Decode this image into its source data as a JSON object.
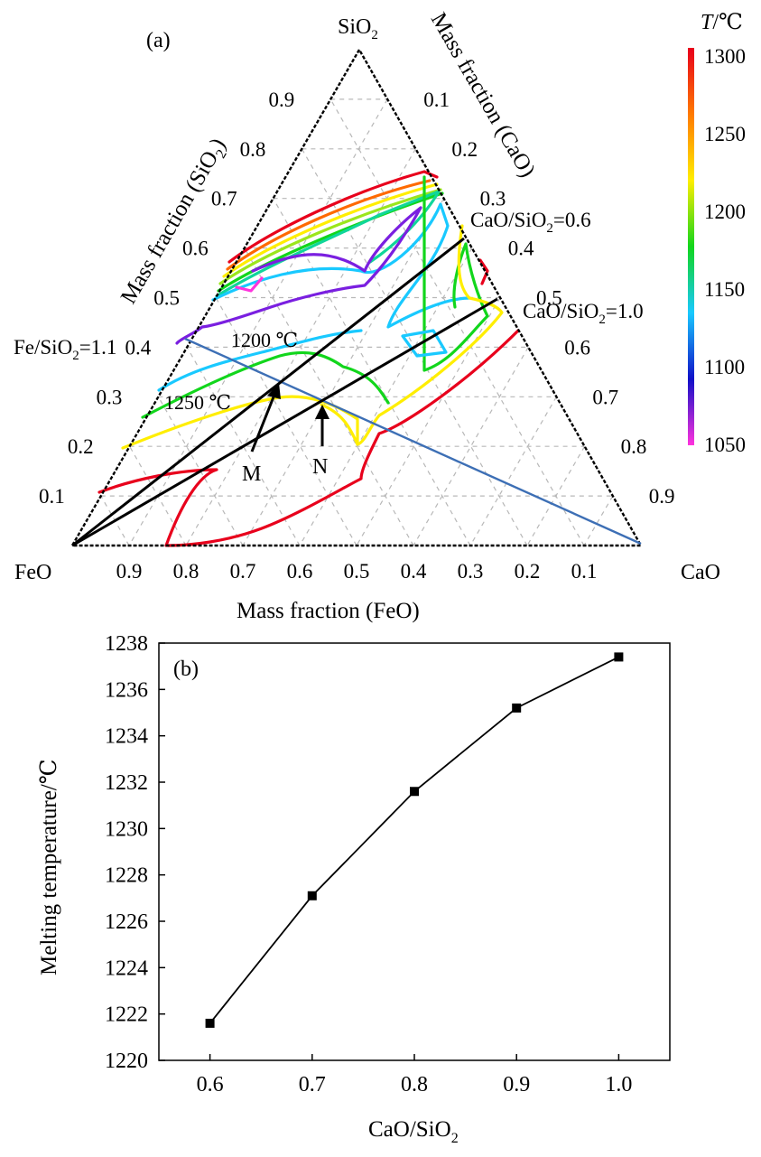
{
  "figure": {
    "panel_a_label": "(a)",
    "panel_b_label": "(b)"
  },
  "ternary": {
    "vertex_top": "SiO",
    "vertex_top_sub": "2",
    "vertex_left": "FeO",
    "vertex_right": "CaO",
    "axis_left_label": "Mass fraction (SiO",
    "axis_left_label_sub": "2",
    "axis_left_label_tail": ")",
    "axis_right_label": "Mass fraction (CaO)",
    "axis_bottom_label": "Mass fraction (FeO)",
    "left_ticks": [
      "0.9",
      "0.8",
      "0.7",
      "0.6",
      "0.5",
      "0.4",
      "0.3",
      "0.2",
      "0.1"
    ],
    "right_ticks": [
      "0.1",
      "0.2",
      "0.3",
      "0.4",
      "0.5",
      "0.6",
      "0.7",
      "0.8",
      "0.9"
    ],
    "bottom_ticks": [
      "0.9",
      "0.8",
      "0.7",
      "0.6",
      "0.5",
      "0.4",
      "0.3",
      "0.2",
      "0.1"
    ],
    "ratio_lines": [
      {
        "label_pre": "CaO/SiO",
        "label_sub": "2",
        "label_post": "=0.6"
      },
      {
        "label_pre": "CaO/SiO",
        "label_sub": "2",
        "label_post": "=1.0"
      },
      {
        "label_pre": "Fe/SiO",
        "label_sub": "2",
        "label_post": "=1.1"
      }
    ],
    "isotherm_labels": [
      "1200 ℃",
      "1250 ℃"
    ],
    "points": [
      "M",
      "N"
    ],
    "line_colors": {
      "ratio": "#000000",
      "fe_ratio": "#3d6fb5"
    }
  },
  "colorbar": {
    "title_T": "T",
    "title_unit": "/℃",
    "ticks": [
      "1300",
      "1250",
      "1200",
      "1150",
      "1100",
      "1050"
    ],
    "stops": [
      "#e8001c",
      "#ff7a00",
      "#ffee00",
      "#12d61c",
      "#19c9ff",
      "#1010c8",
      "#ff33dd"
    ],
    "isotherm_colors": {
      "1300": "#e8001c",
      "1275": "#ff6a00",
      "1250": "#ffee00",
      "1225": "#9be61c",
      "1200": "#12d61c",
      "1175": "#10d69a",
      "1150": "#19c9ff",
      "1100": "#7a1fe0",
      "1050": "#ff33dd"
    }
  },
  "chart_data": {
    "type": "line",
    "title": "",
    "xlabel_pre": "CaO/SiO",
    "xlabel_sub": "2",
    "ylabel": "Melting temperature/℃",
    "x": [
      0.6,
      0.7,
      0.8,
      0.9,
      1.0
    ],
    "series": [
      {
        "name": "",
        "values": [
          1221.6,
          1227.1,
          1231.6,
          1235.2,
          1237.4
        ]
      }
    ],
    "xlim": [
      0.55,
      1.05
    ],
    "ylim": [
      1220,
      1238
    ],
    "xticks": [
      "0.6",
      "0.7",
      "0.8",
      "0.9",
      "1.0"
    ],
    "yticks": [
      "1220",
      "1222",
      "1224",
      "1226",
      "1228",
      "1230",
      "1232",
      "1234",
      "1236",
      "1238"
    ],
    "grid": false,
    "marker": "square",
    "color": "#000000"
  }
}
